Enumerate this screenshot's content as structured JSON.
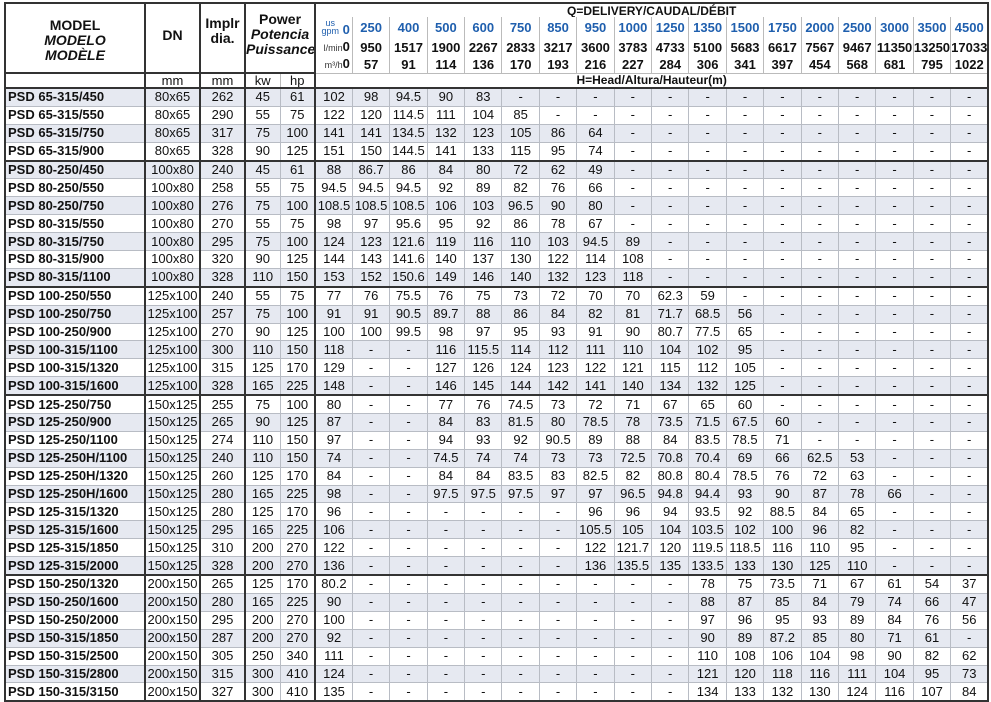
{
  "header": {
    "model": [
      "MODEL",
      "MODELO",
      "MODÈLE"
    ],
    "dn": "DN",
    "impeller": [
      "Implr",
      "dia."
    ],
    "power": [
      "Power",
      "Potencia",
      "Puissance"
    ],
    "units": {
      "dn": "mm",
      "impeller": "mm",
      "kw": "kw",
      "hp": "hp"
    },
    "delivery_title": "Q=DELIVERY/CAUDAL/DÉBIT",
    "head_title": "H=Head/Altura/Hauteur(m)",
    "gpm_label": [
      "us",
      "gpm"
    ],
    "lmin_label": "l/min",
    "m3h_label": "m³/h"
  },
  "flow": {
    "gpm": [
      "0",
      "250",
      "400",
      "500",
      "600",
      "750",
      "850",
      "950",
      "1000",
      "1250",
      "1350",
      "1500",
      "1750",
      "2000",
      "2500",
      "3000",
      "3500",
      "4500"
    ],
    "lmin": [
      "0",
      "950",
      "1517",
      "1900",
      "2267",
      "2833",
      "3217",
      "3600",
      "3783",
      "4733",
      "5100",
      "5683",
      "6617",
      "7567",
      "9467",
      "11350",
      "13250",
      "17033"
    ],
    "m3h": [
      "0",
      "57",
      "91",
      "114",
      "136",
      "170",
      "193",
      "216",
      "227",
      "284",
      "306",
      "341",
      "397",
      "454",
      "568",
      "681",
      "795",
      "1022"
    ]
  },
  "colors": {
    "gpm_text": "#1f5fae",
    "row_shade": "#e6e9f1",
    "border": "#333333"
  },
  "rows": [
    {
      "model": "PSD 65-315/450",
      "dn": "80x65",
      "imp": "262",
      "kw": "45",
      "hp": "61",
      "h": [
        "102",
        "98",
        "94.5",
        "90",
        "83",
        "-",
        "-",
        "-",
        "-",
        "-",
        "-",
        "-",
        "-",
        "-",
        "-",
        "-",
        "-",
        "-"
      ]
    },
    {
      "model": "PSD 65-315/550",
      "dn": "80x65",
      "imp": "290",
      "kw": "55",
      "hp": "75",
      "h": [
        "122",
        "120",
        "114.5",
        "111",
        "104",
        "85",
        "-",
        "-",
        "-",
        "-",
        "-",
        "-",
        "-",
        "-",
        "-",
        "-",
        "-",
        "-"
      ]
    },
    {
      "model": "PSD 65-315/750",
      "dn": "80x65",
      "imp": "317",
      "kw": "75",
      "hp": "100",
      "h": [
        "141",
        "141",
        "134.5",
        "132",
        "123",
        "105",
        "86",
        "64",
        "-",
        "-",
        "-",
        "-",
        "-",
        "-",
        "-",
        "-",
        "-",
        "-"
      ]
    },
    {
      "model": "PSD 65-315/900",
      "dn": "80x65",
      "imp": "328",
      "kw": "90",
      "hp": "125",
      "h": [
        "151",
        "150",
        "144.5",
        "141",
        "133",
        "115",
        "95",
        "74",
        "-",
        "-",
        "-",
        "-",
        "-",
        "-",
        "-",
        "-",
        "-",
        "-"
      ]
    },
    {
      "model": "PSD 80-250/450",
      "dn": "100x80",
      "imp": "240",
      "kw": "45",
      "hp": "61",
      "group_start": true,
      "h": [
        "88",
        "86.7",
        "86",
        "84",
        "80",
        "72",
        "62",
        "49",
        "-",
        "-",
        "-",
        "-",
        "-",
        "-",
        "-",
        "-",
        "-",
        "-"
      ]
    },
    {
      "model": "PSD 80-250/550",
      "dn": "100x80",
      "imp": "258",
      "kw": "55",
      "hp": "75",
      "h": [
        "94.5",
        "94.5",
        "94.5",
        "92",
        "89",
        "82",
        "76",
        "66",
        "-",
        "-",
        "-",
        "-",
        "-",
        "-",
        "-",
        "-",
        "-",
        "-"
      ]
    },
    {
      "model": "PSD 80-250/750",
      "dn": "100x80",
      "imp": "276",
      "kw": "75",
      "hp": "100",
      "h": [
        "108.5",
        "108.5",
        "108.5",
        "106",
        "103",
        "96.5",
        "90",
        "80",
        "-",
        "-",
        "-",
        "-",
        "-",
        "-",
        "-",
        "-",
        "-",
        "-"
      ]
    },
    {
      "model": "PSD 80-315/550",
      "dn": "100x80",
      "imp": "270",
      "kw": "55",
      "hp": "75",
      "h": [
        "98",
        "97",
        "95.6",
        "95",
        "92",
        "86",
        "78",
        "67",
        "-",
        "-",
        "-",
        "-",
        "-",
        "-",
        "-",
        "-",
        "-",
        "-"
      ]
    },
    {
      "model": "PSD 80-315/750",
      "dn": "100x80",
      "imp": "295",
      "kw": "75",
      "hp": "100",
      "h": [
        "124",
        "123",
        "121.6",
        "119",
        "116",
        "110",
        "103",
        "94.5",
        "89",
        "-",
        "-",
        "-",
        "-",
        "-",
        "-",
        "-",
        "-",
        "-"
      ]
    },
    {
      "model": "PSD 80-315/900",
      "dn": "100x80",
      "imp": "320",
      "kw": "90",
      "hp": "125",
      "h": [
        "144",
        "143",
        "141.6",
        "140",
        "137",
        "130",
        "122",
        "114",
        "108",
        "-",
        "-",
        "-",
        "-",
        "-",
        "-",
        "-",
        "-",
        "-"
      ]
    },
    {
      "model": "PSD 80-315/1100",
      "dn": "100x80",
      "imp": "328",
      "kw": "110",
      "hp": "150",
      "h": [
        "153",
        "152",
        "150.6",
        "149",
        "146",
        "140",
        "132",
        "123",
        "118",
        "-",
        "-",
        "-",
        "-",
        "-",
        "-",
        "-",
        "-",
        "-"
      ]
    },
    {
      "model": "PSD 100-250/550",
      "dn": "125x100",
      "imp": "240",
      "kw": "55",
      "hp": "75",
      "group_start": true,
      "h": [
        "77",
        "76",
        "75.5",
        "76",
        "75",
        "73",
        "72",
        "70",
        "70",
        "62.3",
        "59",
        "-",
        "-",
        "-",
        "-",
        "-",
        "-",
        "-"
      ]
    },
    {
      "model": "PSD 100-250/750",
      "dn": "125x100",
      "imp": "257",
      "kw": "75",
      "hp": "100",
      "h": [
        "91",
        "91",
        "90.5",
        "89.7",
        "88",
        "86",
        "84",
        "82",
        "81",
        "71.7",
        "68.5",
        "56",
        "-",
        "-",
        "-",
        "-",
        "-",
        "-"
      ]
    },
    {
      "model": "PSD 100-250/900",
      "dn": "125x100",
      "imp": "270",
      "kw": "90",
      "hp": "125",
      "h": [
        "100",
        "100",
        "99.5",
        "98",
        "97",
        "95",
        "93",
        "91",
        "90",
        "80.7",
        "77.5",
        "65",
        "-",
        "-",
        "-",
        "-",
        "-",
        "-"
      ]
    },
    {
      "model": "PSD 100-315/1100",
      "dn": "125x100",
      "imp": "300",
      "kw": "110",
      "hp": "150",
      "h": [
        "118",
        "-",
        "-",
        "116",
        "115.5",
        "114",
        "112",
        "111",
        "110",
        "104",
        "102",
        "95",
        "-",
        "-",
        "-",
        "-",
        "-",
        "-"
      ]
    },
    {
      "model": "PSD 100-315/1320",
      "dn": "125x100",
      "imp": "315",
      "kw": "125",
      "hp": "170",
      "h": [
        "129",
        "-",
        "-",
        "127",
        "126",
        "124",
        "123",
        "122",
        "121",
        "115",
        "112",
        "105",
        "-",
        "-",
        "-",
        "-",
        "-",
        "-"
      ]
    },
    {
      "model": "PSD 100-315/1600",
      "dn": "125x100",
      "imp": "328",
      "kw": "165",
      "hp": "225",
      "h": [
        "148",
        "-",
        "-",
        "146",
        "145",
        "144",
        "142",
        "141",
        "140",
        "134",
        "132",
        "125",
        "-",
        "-",
        "-",
        "-",
        "-",
        "-"
      ]
    },
    {
      "model": "PSD 125-250/750",
      "dn": "150x125",
      "imp": "255",
      "kw": "75",
      "hp": "100",
      "group_start": true,
      "h": [
        "80",
        "-",
        "-",
        "77",
        "76",
        "74.5",
        "73",
        "72",
        "71",
        "67",
        "65",
        "60",
        "-",
        "-",
        "-",
        "-",
        "-",
        "-"
      ]
    },
    {
      "model": "PSD 125-250/900",
      "dn": "150x125",
      "imp": "265",
      "kw": "90",
      "hp": "125",
      "h": [
        "87",
        "-",
        "-",
        "84",
        "83",
        "81.5",
        "80",
        "78.5",
        "78",
        "73.5",
        "71.5",
        "67.5",
        "60",
        "-",
        "-",
        "-",
        "-",
        "-"
      ]
    },
    {
      "model": "PSD 125-250/1100",
      "dn": "150x125",
      "imp": "274",
      "kw": "110",
      "hp": "150",
      "h": [
        "97",
        "-",
        "-",
        "94",
        "93",
        "92",
        "90.5",
        "89",
        "88",
        "84",
        "83.5",
        "78.5",
        "71",
        "-",
        "-",
        "-",
        "-",
        "-"
      ]
    },
    {
      "model": "PSD 125-250H/1100",
      "dn": "150x125",
      "imp": "240",
      "kw": "110",
      "hp": "150",
      "h": [
        "74",
        "-",
        "-",
        "74.5",
        "74",
        "74",
        "73",
        "73",
        "72.5",
        "70.8",
        "70.4",
        "69",
        "66",
        "62.5",
        "53",
        "-",
        "-",
        "-"
      ]
    },
    {
      "model": "PSD 125-250H/1320",
      "dn": "150x125",
      "imp": "260",
      "kw": "125",
      "hp": "170",
      "h": [
        "84",
        "-",
        "-",
        "84",
        "84",
        "83.5",
        "83",
        "82.5",
        "82",
        "80.8",
        "80.4",
        "78.5",
        "76",
        "72",
        "63",
        "-",
        "-",
        "-"
      ]
    },
    {
      "model": "PSD 125-250H/1600",
      "dn": "150x125",
      "imp": "280",
      "kw": "165",
      "hp": "225",
      "h": [
        "98",
        "-",
        "-",
        "97.5",
        "97.5",
        "97.5",
        "97",
        "97",
        "96.5",
        "94.8",
        "94.4",
        "93",
        "90",
        "87",
        "78",
        "66",
        "-",
        "-"
      ]
    },
    {
      "model": "PSD 125-315/1320",
      "dn": "150x125",
      "imp": "280",
      "kw": "125",
      "hp": "170",
      "h": [
        "96",
        "-",
        "-",
        "-",
        "-",
        "-",
        "-",
        "96",
        "96",
        "94",
        "93.5",
        "92",
        "88.5",
        "84",
        "65",
        "-",
        "-",
        "-"
      ]
    },
    {
      "model": "PSD 125-315/1600",
      "dn": "150x125",
      "imp": "295",
      "kw": "165",
      "hp": "225",
      "h": [
        "106",
        "-",
        "-",
        "-",
        "-",
        "-",
        "-",
        "105.5",
        "105",
        "104",
        "103.5",
        "102",
        "100",
        "96",
        "82",
        "-",
        "-",
        "-"
      ]
    },
    {
      "model": "PSD 125-315/1850",
      "dn": "150x125",
      "imp": "310",
      "kw": "200",
      "hp": "270",
      "h": [
        "122",
        "-",
        "-",
        "-",
        "-",
        "-",
        "-",
        "122",
        "121.7",
        "120",
        "119.5",
        "118.5",
        "116",
        "110",
        "95",
        "-",
        "-",
        "-"
      ]
    },
    {
      "model": "PSD 125-315/2000",
      "dn": "150x125",
      "imp": "328",
      "kw": "200",
      "hp": "270",
      "h": [
        "136",
        "-",
        "-",
        "-",
        "-",
        "-",
        "-",
        "136",
        "135.5",
        "135",
        "133.5",
        "133",
        "130",
        "125",
        "110",
        "-",
        "-",
        "-"
      ]
    },
    {
      "model": "PSD 150-250/1320",
      "dn": "200x150",
      "imp": "265",
      "kw": "125",
      "hp": "170",
      "group_start": true,
      "h": [
        "80.2",
        "-",
        "-",
        "-",
        "-",
        "-",
        "-",
        "-",
        "-",
        "-",
        "78",
        "75",
        "73.5",
        "71",
        "67",
        "61",
        "54",
        "37"
      ]
    },
    {
      "model": "PSD 150-250/1600",
      "dn": "200x150",
      "imp": "280",
      "kw": "165",
      "hp": "225",
      "h": [
        "90",
        "-",
        "-",
        "-",
        "-",
        "-",
        "-",
        "-",
        "-",
        "-",
        "88",
        "87",
        "85",
        "84",
        "79",
        "74",
        "66",
        "47"
      ]
    },
    {
      "model": "PSD 150-250/2000",
      "dn": "200x150",
      "imp": "295",
      "kw": "200",
      "hp": "270",
      "h": [
        "100",
        "-",
        "-",
        "-",
        "-",
        "-",
        "-",
        "-",
        "-",
        "-",
        "97",
        "96",
        "95",
        "93",
        "89",
        "84",
        "76",
        "56"
      ]
    },
    {
      "model": "PSD 150-315/1850",
      "dn": "200x150",
      "imp": "287",
      "kw": "200",
      "hp": "270",
      "h": [
        "92",
        "-",
        "-",
        "-",
        "-",
        "-",
        "-",
        "-",
        "-",
        "-",
        "90",
        "89",
        "87.2",
        "85",
        "80",
        "71",
        "61",
        "-"
      ]
    },
    {
      "model": "PSD 150-315/2500",
      "dn": "200x150",
      "imp": "305",
      "kw": "250",
      "hp": "340",
      "h": [
        "111",
        "-",
        "-",
        "-",
        "-",
        "-",
        "-",
        "-",
        "-",
        "-",
        "110",
        "108",
        "106",
        "104",
        "98",
        "90",
        "82",
        "62"
      ]
    },
    {
      "model": "PSD 150-315/2800",
      "dn": "200x150",
      "imp": "315",
      "kw": "300",
      "hp": "410",
      "h": [
        "124",
        "-",
        "-",
        "-",
        "-",
        "-",
        "-",
        "-",
        "-",
        "-",
        "121",
        "120",
        "118",
        "116",
        "111",
        "104",
        "95",
        "73"
      ]
    },
    {
      "model": "PSD 150-315/3150",
      "dn": "200x150",
      "imp": "327",
      "kw": "300",
      "hp": "410",
      "h": [
        "135",
        "-",
        "-",
        "-",
        "-",
        "-",
        "-",
        "-",
        "-",
        "-",
        "134",
        "133",
        "132",
        "130",
        "124",
        "116",
        "107",
        "84"
      ]
    }
  ]
}
